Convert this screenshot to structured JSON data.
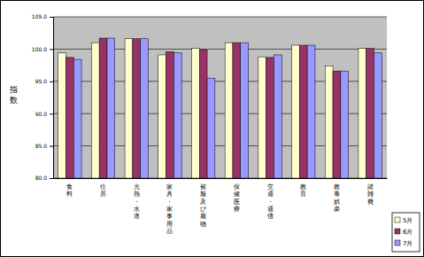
{
  "chart_data": {
    "type": "bar",
    "y_label": "指数",
    "categories": [
      "食料",
      "住居",
      "光熱・水道",
      "家具・家事用品",
      "被服及び履物",
      "保健医療",
      "交通・通信",
      "教育",
      "教養娯楽",
      "諸雑費"
    ],
    "series": [
      {
        "name": "5月",
        "color": "#ffffcc",
        "values": [
          99.4,
          101.0,
          101.6,
          99.1,
          100.1,
          101.0,
          98.8,
          100.6,
          97.4,
          100.1
        ]
      },
      {
        "name": "6月",
        "color": "#993366",
        "values": [
          98.7,
          101.7,
          101.6,
          99.6,
          99.9,
          101.0,
          98.7,
          100.6,
          96.6,
          100.1
        ]
      },
      {
        "name": "7月",
        "color": "#9999ff",
        "values": [
          98.4,
          101.7,
          101.6,
          99.4,
          95.5,
          101.0,
          99.1,
          100.6,
          96.6,
          99.4
        ]
      }
    ],
    "ylim": [
      80,
      105
    ],
    "yticks": [
      {
        "value": 80,
        "label": "80.0"
      },
      {
        "value": 85,
        "label": "85.0"
      },
      {
        "value": 90,
        "label": "90.0"
      },
      {
        "value": 95,
        "label": "95.0"
      },
      {
        "value": 100,
        "label": "100.0"
      },
      {
        "value": 105,
        "label": "105.0"
      }
    ],
    "grid": true,
    "legend": "bottom-right"
  }
}
